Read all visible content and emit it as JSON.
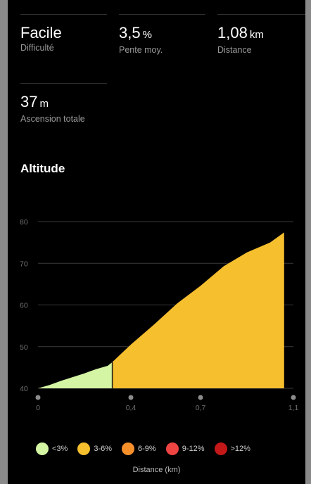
{
  "stats": [
    {
      "value": "Facile",
      "unit": "",
      "label": "Difficulté"
    },
    {
      "value": "3,5",
      "unit": "%",
      "label": "Pente moy."
    },
    {
      "value": "1,08",
      "unit": "km",
      "label": "Distance"
    },
    {
      "value": "37",
      "unit": "m",
      "label": "Ascension totale"
    }
  ],
  "section_title": "Altitude",
  "colors": {
    "background": "#000000",
    "gentle": "#d4f5a3",
    "moderate": "#f6bf2e",
    "steep": "#f7902b",
    "very_steep": "#ee4442",
    "extreme": "#c41818"
  },
  "legend": [
    {
      "label": "<3%",
      "color": "#d4f5a3"
    },
    {
      "label": "3-6%",
      "color": "#f6bf2e"
    },
    {
      "label": "6-9%",
      "color": "#f7902b"
    },
    {
      "label": "9-12%",
      "color": "#ee4442"
    },
    {
      "label": ">12%",
      "color": "#c41818"
    }
  ],
  "chart_data": {
    "type": "area",
    "xlabel": "Distance (km)",
    "ylabel": "",
    "xlim": [
      0,
      1.1
    ],
    "ylim": [
      40,
      80
    ],
    "x_ticks": [
      0,
      0.4,
      0.7,
      1.1
    ],
    "x_tick_labels": [
      "0",
      "0,4",
      "0,7",
      "1,1"
    ],
    "y_ticks": [
      40,
      50,
      60,
      70,
      80
    ],
    "y_tick_labels": [
      "40",
      "50",
      "60",
      "70",
      "80"
    ],
    "grid": true,
    "legend_position": "bottom",
    "x": [
      0,
      0.05,
      0.1,
      0.15,
      0.2,
      0.25,
      0.3,
      0.32,
      0.4,
      0.5,
      0.6,
      0.7,
      0.8,
      0.9,
      1.0,
      1.06
    ],
    "y": [
      40,
      40.8,
      41.8,
      42.7,
      43.6,
      44.6,
      45.4,
      46.3,
      50.5,
      55.3,
      60.4,
      64.6,
      69.3,
      72.6,
      75.0,
      77.4
    ],
    "segments": [
      {
        "range": "<3%",
        "x_start": 0,
        "x_end": 0.32,
        "color": "#d4f5a3"
      },
      {
        "range": "3-6%",
        "x_start": 0.32,
        "x_end": 1.06,
        "color": "#f6bf2e"
      }
    ]
  }
}
